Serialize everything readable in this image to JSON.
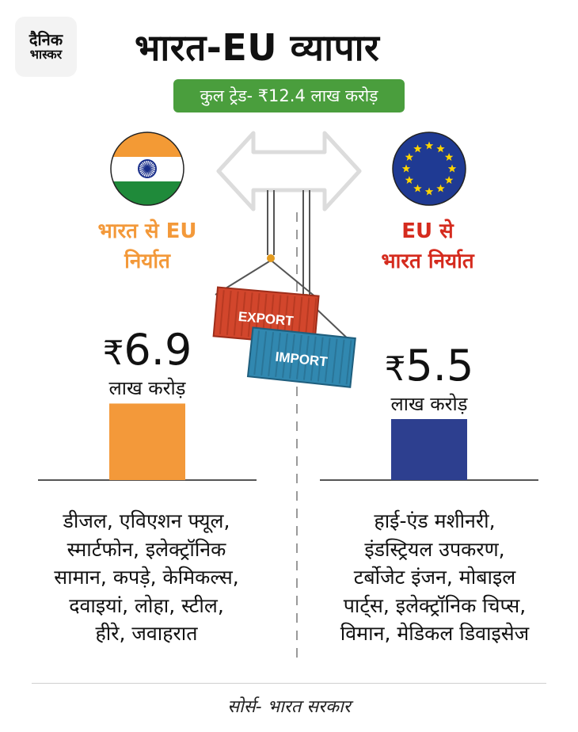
{
  "logo": {
    "line1": "दैनिक",
    "line2": "भास्कर"
  },
  "title": "भारत-EU व्यापार",
  "total_trade": "कुल ट्रेड- ₹12.4 लाख करोड़",
  "india_label": [
    "भारत से EU",
    "निर्यात"
  ],
  "eu_label": [
    "EU से",
    "भारत निर्यात"
  ],
  "container_labels": {
    "export": "EXPORT",
    "import": "IMPORT"
  },
  "chart_data": {
    "type": "bar",
    "categories": [
      "भारत से EU निर्यात",
      "EU से भारत निर्यात"
    ],
    "values": [
      6.9,
      5.5
    ],
    "value_labels": {
      "currency": "₹",
      "india": "6.9",
      "eu": "5.5",
      "unit": "लाख करोड़"
    },
    "colors": [
      "#f3993a",
      "#2d3f8f"
    ]
  },
  "india_products": [
    "डीजल, एविएशन फ्यूल,",
    "स्मार्टफोन, इलेक्ट्रॉनिक",
    "सामान, कपड़े, केमिकल्स,",
    "दवाइयां, लोहा, स्टील,",
    "हीरे, जवाहरात"
  ],
  "eu_products": [
    "हाई-एंड मशीनरी,",
    "इंडस्ट्रियल उपकरण,",
    "टर्बोजेट इंजन, मोबाइल",
    "पार्ट्स, इलेक्ट्रॉनिक चिप्स,",
    "विमान, मेडिकल डिवाइसेज"
  ],
  "source": "सोर्स- भारत सरकार",
  "colors": {
    "india": "#f3993a",
    "eu_label": "#d52b1e",
    "eu_bar": "#2d3f8f",
    "total_bg": "#4a9e3d"
  }
}
